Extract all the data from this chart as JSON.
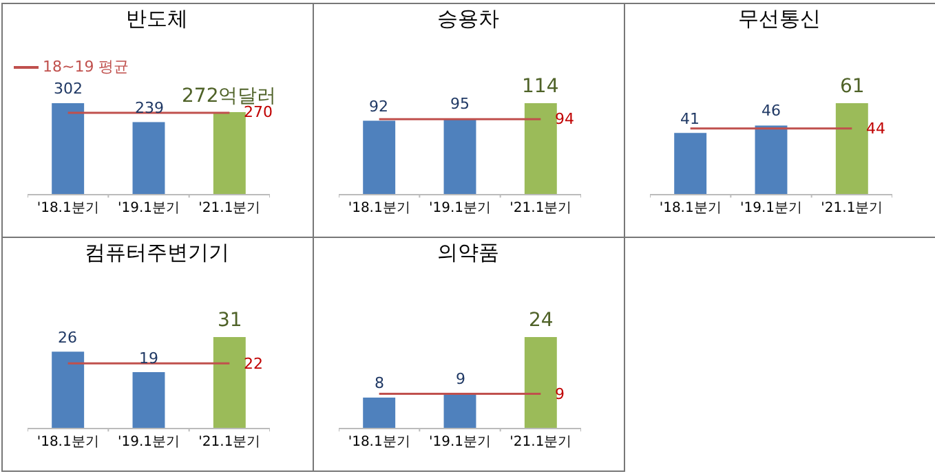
{
  "chart_data": [
    {
      "type": "bar",
      "title": "반도체",
      "tick_labels": "x",
      "categories": [
        "'18.1분기",
        "'19.1분기",
        "'21.1분기"
      ],
      "values": [
        302,
        239,
        272
      ],
      "colors": [
        "#4f81bd",
        "#4f81bd",
        "#9bbb59"
      ],
      "value_labels": [
        "302",
        "239",
        "272억달러"
      ],
      "ref_lines": [
        {
          "axis": "y",
          "value": 270,
          "label": "270",
          "color": "#c0504d"
        }
      ],
      "annotations": [
        "18~19 평균"
      ]
    },
    {
      "type": "bar",
      "title": "승용차",
      "tick_labels": "x",
      "categories": [
        "'18.1분기",
        "'19.1분기",
        "'21.1분기"
      ],
      "values": [
        92,
        95,
        114
      ],
      "colors": [
        "#4f81bd",
        "#4f81bd",
        "#9bbb59"
      ],
      "value_labels": [
        "92",
        "95",
        "114"
      ],
      "ref_lines": [
        {
          "axis": "y",
          "value": 94,
          "label": "94",
          "color": "#c0504d"
        }
      ]
    },
    {
      "type": "bar",
      "title": "무선통신",
      "tick_labels": "x",
      "categories": [
        "'18.1분기",
        "'19.1분기",
        "'21.1분기"
      ],
      "values": [
        41,
        46,
        61
      ],
      "colors": [
        "#4f81bd",
        "#4f81bd",
        "#9bbb59"
      ],
      "value_labels": [
        "41",
        "46",
        "61"
      ],
      "ref_lines": [
        {
          "axis": "y",
          "value": 44,
          "label": "44",
          "color": "#c0504d"
        }
      ]
    },
    {
      "type": "bar",
      "title": "컴퓨터주변기기",
      "tick_labels": "x",
      "categories": [
        "'18.1분기",
        "'19.1분기",
        "'21.1분기"
      ],
      "values": [
        26,
        19,
        31
      ],
      "colors": [
        "#4f81bd",
        "#4f81bd",
        "#9bbb59"
      ],
      "value_labels": [
        "26",
        "19",
        "31"
      ],
      "ref_lines": [
        {
          "axis": "y",
          "value": 22,
          "label": "22",
          "color": "#c0504d"
        }
      ]
    },
    {
      "type": "bar",
      "title": "의약품",
      "tick_labels": "x",
      "categories": [
        "'18.1분기",
        "'19.1분기",
        "'21.1분기"
      ],
      "values": [
        8,
        9,
        24
      ],
      "colors": [
        "#4f81bd",
        "#4f81bd",
        "#9bbb59"
      ],
      "value_labels": [
        "8",
        "9",
        "24"
      ],
      "ref_lines": [
        {
          "axis": "y",
          "value": 9,
          "label": "9",
          "color": "#c0504d"
        }
      ]
    }
  ]
}
